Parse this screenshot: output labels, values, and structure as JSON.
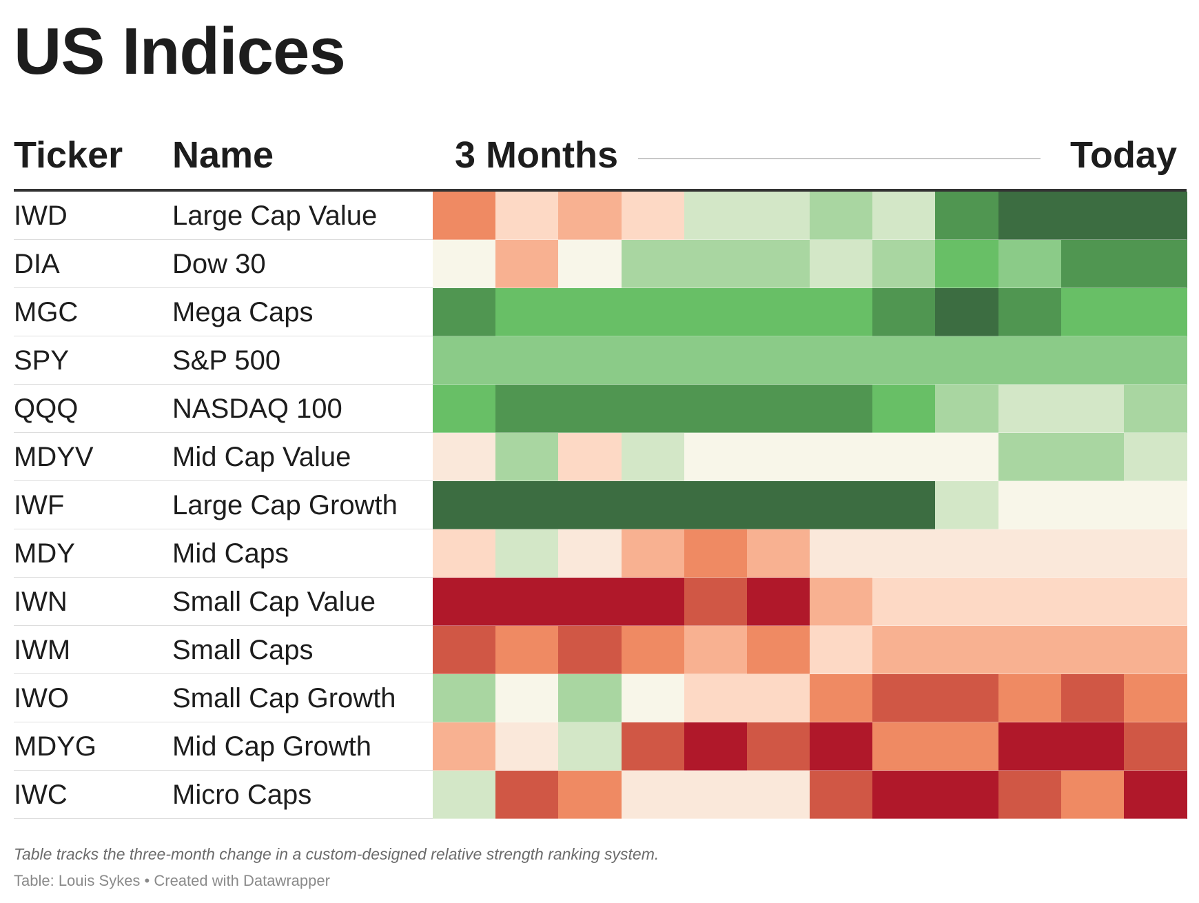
{
  "title": "US Indices",
  "headers": {
    "ticker": "Ticker",
    "name": "Name",
    "start": "3 Months",
    "end": "Today"
  },
  "footer": {
    "note": "Table tracks the three-month change in a custom-designed relative strength ranking system.",
    "source": "Table: Louis Sykes • Created with Datawrapper"
  },
  "palette": {
    "R3": "#b0182a",
    "R2": "#d05745",
    "R1": "#ef8a63",
    "R0": "#f8b191",
    "P2": "#fdd9c5",
    "P1": "#fae8da",
    "N": "#f8f6e9",
    "G0": "#d3e7c7",
    "G1": "#a9d6a1",
    "G2": "#8bcb88",
    "G3": "#68bf66",
    "G4": "#509651",
    "G5": "#3c6d41"
  },
  "chart_data": {
    "type": "heatmap",
    "columns_count": 12,
    "rows": [
      {
        "ticker": "IWD",
        "name": "Large Cap Value",
        "cells": [
          "R1",
          "P2",
          "R0",
          "P2",
          "G0",
          "G0",
          "G1",
          "G0",
          "G4",
          "G5",
          "G5",
          "G5"
        ]
      },
      {
        "ticker": "DIA",
        "name": "Dow 30",
        "cells": [
          "N",
          "R0",
          "N",
          "G1",
          "G1",
          "G1",
          "G0",
          "G1",
          "G3",
          "G2",
          "G4",
          "G4"
        ]
      },
      {
        "ticker": "MGC",
        "name": "Mega Caps",
        "cells": [
          "G4",
          "G3",
          "G3",
          "G3",
          "G3",
          "G3",
          "G3",
          "G4",
          "G5",
          "G4",
          "G3",
          "G3"
        ]
      },
      {
        "ticker": "SPY",
        "name": "S&P 500",
        "cells": [
          "G2",
          "G2",
          "G2",
          "G2",
          "G2",
          "G2",
          "G2",
          "G2",
          "G2",
          "G2",
          "G2",
          "G2"
        ]
      },
      {
        "ticker": "QQQ",
        "name": "NASDAQ 100",
        "cells": [
          "G3",
          "G4",
          "G4",
          "G4",
          "G4",
          "G4",
          "G4",
          "G3",
          "G1",
          "G0",
          "G0",
          "G1"
        ]
      },
      {
        "ticker": "MDYV",
        "name": "Mid Cap Value",
        "cells": [
          "P1",
          "G1",
          "P2",
          "G0",
          "N",
          "N",
          "N",
          "N",
          "N",
          "G1",
          "G1",
          "G0"
        ]
      },
      {
        "ticker": "IWF",
        "name": "Large Cap Growth",
        "cells": [
          "G5",
          "G5",
          "G5",
          "G5",
          "G5",
          "G5",
          "G5",
          "G5",
          "G0",
          "N",
          "N",
          "N"
        ]
      },
      {
        "ticker": "MDY",
        "name": "Mid Caps",
        "cells": [
          "P2",
          "G0",
          "P1",
          "R0",
          "R1",
          "R0",
          "P1",
          "P1",
          "P1",
          "P1",
          "P1",
          "P1"
        ]
      },
      {
        "ticker": "IWN",
        "name": "Small Cap Value",
        "cells": [
          "R3",
          "R3",
          "R3",
          "R3",
          "R2",
          "R3",
          "R0",
          "P2",
          "P2",
          "P2",
          "P2",
          "P2"
        ]
      },
      {
        "ticker": "IWM",
        "name": "Small Caps",
        "cells": [
          "R2",
          "R1",
          "R2",
          "R1",
          "R0",
          "R1",
          "P2",
          "R0",
          "R0",
          "R0",
          "R0",
          "R0"
        ]
      },
      {
        "ticker": "IWO",
        "name": "Small Cap Growth",
        "cells": [
          "G1",
          "N",
          "G1",
          "N",
          "P2",
          "P2",
          "R1",
          "R2",
          "R2",
          "R1",
          "R2",
          "R1"
        ]
      },
      {
        "ticker": "MDYG",
        "name": "Mid Cap Growth",
        "cells": [
          "R0",
          "P1",
          "G0",
          "R2",
          "R3",
          "R2",
          "R3",
          "R1",
          "R1",
          "R3",
          "R3",
          "R2"
        ]
      },
      {
        "ticker": "IWC",
        "name": "Micro Caps",
        "cells": [
          "G0",
          "R2",
          "R1",
          "P1",
          "P1",
          "P1",
          "R2",
          "R3",
          "R3",
          "R2",
          "R1",
          "R3"
        ]
      }
    ]
  }
}
